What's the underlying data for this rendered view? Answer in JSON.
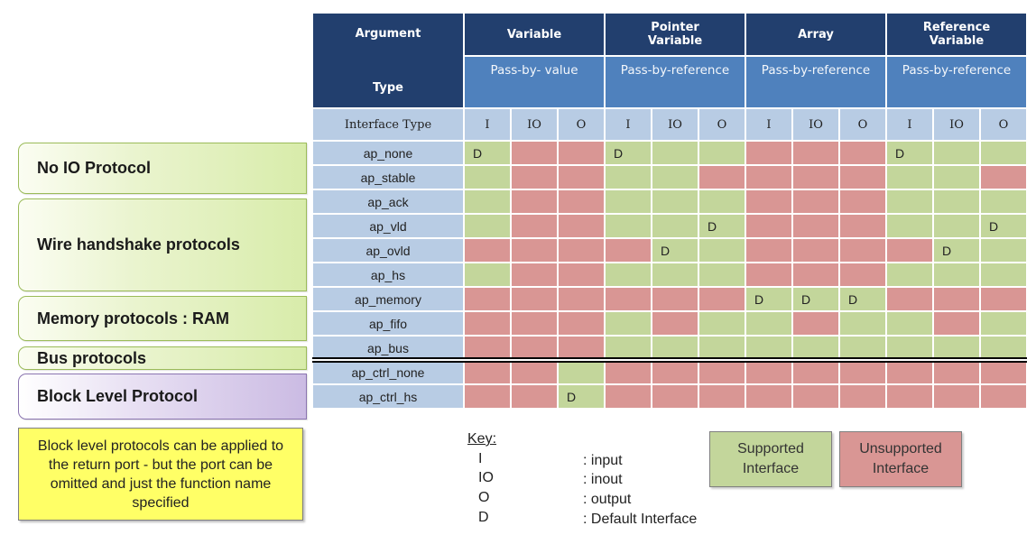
{
  "table": {
    "argument_label": "Argument",
    "type_label": "Type",
    "interface_type_label": "Interface Type",
    "groups": [
      {
        "title": "Variable",
        "pass": "Pass-by- value"
      },
      {
        "title": "Pointer Variable",
        "pass": "Pass-by-reference"
      },
      {
        "title": "Array",
        "pass": "Pass-by-reference"
      },
      {
        "title": "Reference Variable",
        "pass": "Pass-by-reference"
      }
    ],
    "modes": [
      "I",
      "IO",
      "O"
    ],
    "rows": [
      {
        "name": "ap_none",
        "cells": [
          "S",
          "U",
          "U",
          "S",
          "S",
          "S",
          "U",
          "U",
          "U",
          "S",
          "S",
          "S"
        ],
        "defaults": [
          0,
          3,
          9
        ]
      },
      {
        "name": "ap_stable",
        "cells": [
          "S",
          "U",
          "U",
          "S",
          "S",
          "U",
          "U",
          "U",
          "U",
          "S",
          "S",
          "U"
        ],
        "defaults": []
      },
      {
        "name": "ap_ack",
        "cells": [
          "S",
          "U",
          "U",
          "S",
          "S",
          "S",
          "U",
          "U",
          "U",
          "S",
          "S",
          "S"
        ],
        "defaults": []
      },
      {
        "name": "ap_vld",
        "cells": [
          "S",
          "U",
          "U",
          "S",
          "S",
          "S",
          "U",
          "U",
          "U",
          "S",
          "S",
          "S"
        ],
        "defaults": [
          5,
          11
        ]
      },
      {
        "name": "ap_ovld",
        "cells": [
          "U",
          "U",
          "U",
          "U",
          "S",
          "S",
          "U",
          "U",
          "U",
          "U",
          "S",
          "S"
        ],
        "defaults": [
          4,
          10
        ]
      },
      {
        "name": "ap_hs",
        "cells": [
          "S",
          "U",
          "U",
          "S",
          "S",
          "S",
          "U",
          "U",
          "U",
          "S",
          "S",
          "S"
        ],
        "defaults": []
      },
      {
        "name": "ap_memory",
        "cells": [
          "U",
          "U",
          "U",
          "U",
          "U",
          "U",
          "S",
          "S",
          "S",
          "U",
          "U",
          "U"
        ],
        "defaults": [
          6,
          7,
          8
        ]
      },
      {
        "name": "ap_fifo",
        "cells": [
          "U",
          "U",
          "U",
          "S",
          "U",
          "S",
          "S",
          "U",
          "S",
          "S",
          "U",
          "S"
        ],
        "defaults": []
      },
      {
        "name": "ap_bus",
        "cells": [
          "U",
          "U",
          "U",
          "S",
          "S",
          "S",
          "S",
          "S",
          "S",
          "S",
          "S",
          "S"
        ],
        "defaults": []
      },
      {
        "name": "ap_ctrl_none",
        "cells": [
          "U",
          "U",
          "S",
          "U",
          "U",
          "U",
          "U",
          "U",
          "U",
          "U",
          "U",
          "U"
        ],
        "defaults": []
      },
      {
        "name": "ap_ctrl_hs",
        "cells": [
          "U",
          "U",
          "S",
          "U",
          "U",
          "U",
          "U",
          "U",
          "U",
          "U",
          "U",
          "U"
        ],
        "defaults": [
          2
        ]
      }
    ],
    "default_mark": "D"
  },
  "protocol_groups": [
    {
      "label": "No IO Protocol"
    },
    {
      "label": "Wire handshake protocols"
    },
    {
      "label": "Memory protocols : RAM"
    },
    {
      "label": "Bus protocols"
    },
    {
      "label": "Block Level Protocol"
    }
  ],
  "note": "Block level protocols can be applied to the return port - but the port can be omitted and just the function name specified",
  "key": {
    "title": "Key:",
    "items": [
      {
        "code": "I",
        "desc": ": input"
      },
      {
        "code": "IO",
        "desc": ": inout"
      },
      {
        "code": "O",
        "desc": ": output"
      },
      {
        "code": "D",
        "desc": ": Default Interface"
      }
    ]
  },
  "legend": {
    "supported": "Supported Interface",
    "unsupported": "Unsupported Interface"
  },
  "colors": {
    "header_dark": "#223f6e",
    "header_mid": "#4f81bd",
    "interface_row": "#b8cce4",
    "supported": "#c3d69b",
    "unsupported": "#d99694",
    "note": "#ffff66",
    "block_tab": "#cbbbe3"
  }
}
